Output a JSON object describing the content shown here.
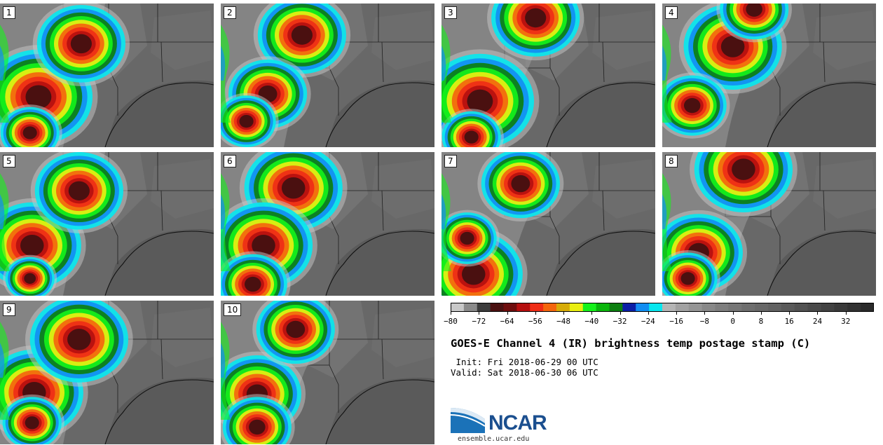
{
  "panels": [
    {
      "label": "1",
      "storms": [
        [
          0.18,
          0.65,
          0.11
        ],
        [
          0.38,
          0.28,
          0.09
        ],
        [
          0.14,
          0.9,
          0.06
        ]
      ]
    },
    {
      "label": "2",
      "storms": [
        [
          0.38,
          0.22,
          0.09
        ],
        [
          0.22,
          0.63,
          0.08
        ],
        [
          0.12,
          0.82,
          0.06
        ]
      ]
    },
    {
      "label": "3",
      "storms": [
        [
          0.18,
          0.68,
          0.11
        ],
        [
          0.44,
          0.1,
          0.09
        ],
        [
          0.14,
          0.93,
          0.06
        ]
      ]
    },
    {
      "label": "4",
      "storms": [
        [
          0.33,
          0.3,
          0.1
        ],
        [
          0.14,
          0.71,
          0.07
        ],
        [
          0.43,
          0.04,
          0.07
        ]
      ]
    },
    {
      "label": "5",
      "storms": [
        [
          0.15,
          0.65,
          0.1
        ],
        [
          0.37,
          0.27,
          0.09
        ],
        [
          0.14,
          0.88,
          0.05
        ]
      ]
    },
    {
      "label": "6",
      "storms": [
        [
          0.34,
          0.25,
          0.1
        ],
        [
          0.2,
          0.65,
          0.1
        ],
        [
          0.15,
          0.92,
          0.07
        ]
      ]
    },
    {
      "label": "7",
      "storms": [
        [
          0.37,
          0.22,
          0.08
        ],
        [
          0.15,
          0.85,
          0.1
        ],
        [
          0.12,
          0.6,
          0.06
        ]
      ]
    },
    {
      "label": "8",
      "storms": [
        [
          0.17,
          0.7,
          0.09
        ],
        [
          0.38,
          0.12,
          0.1
        ],
        [
          0.12,
          0.88,
          0.06
        ]
      ]
    },
    {
      "label": "9",
      "storms": [
        [
          0.16,
          0.64,
          0.1
        ],
        [
          0.37,
          0.27,
          0.1
        ],
        [
          0.15,
          0.85,
          0.06
        ]
      ]
    },
    {
      "label": "10",
      "storms": [
        [
          0.17,
          0.65,
          0.09
        ],
        [
          0.35,
          0.2,
          0.08
        ],
        [
          0.17,
          0.88,
          0.07
        ]
      ]
    }
  ],
  "colorbar": {
    "colors": [
      "#c8c8c8",
      "#8a8a8a",
      "#3c3c3c",
      "#4a1010",
      "#6e0d0d",
      "#b50f0f",
      "#ef2d16",
      "#f4660d",
      "#d7ac08",
      "#e9ee11",
      "#15f21b",
      "#0ab60c",
      "#0c7f10",
      "#0b1fa6",
      "#128ef2",
      "#08e7ee",
      "#b5b5b5",
      "#a2a2a2",
      "#959595",
      "#888888",
      "#7e7e7e",
      "#767676",
      "#6e6e6e",
      "#686868",
      "#626262",
      "#5a5a5a",
      "#525252",
      "#4a4a4a",
      "#424242",
      "#3a3a3a",
      "#323232",
      "#2a2a2a"
    ],
    "ticks": [
      "−80",
      "−72",
      "−64",
      "−56",
      "−48",
      "−40",
      "−32",
      "−24",
      "−16",
      "−8",
      "0",
      "8",
      "16",
      "24",
      "32"
    ],
    "min": -80,
    "max": 40
  },
  "title": "GOES-E Channel 4 (IR) brightness temp postage stamp (C)",
  "init": " Init: Fri 2018-06-29 00 UTC",
  "valid": "Valid: Sat 2018-06-30 06 UTC",
  "logo_text": "NCAR",
  "url": "ensemble.ucar.edu"
}
